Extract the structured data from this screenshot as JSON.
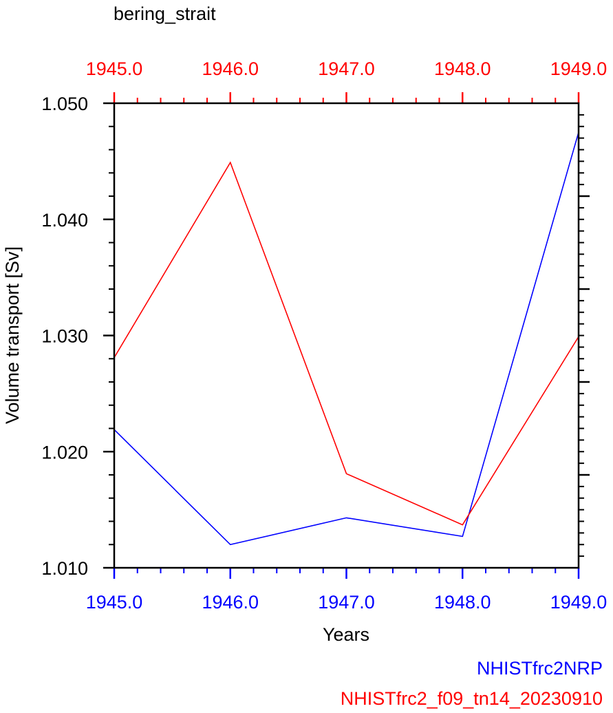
{
  "chart_data": {
    "type": "line",
    "title": "bering_strait",
    "xlabel": "Years",
    "ylabel": "Volume transport [Sv]",
    "x": [
      1945.0,
      1946.0,
      1947.0,
      1948.0,
      1949.0
    ],
    "xlim": [
      1945.0,
      1949.0
    ],
    "ylim": [
      1.01,
      1.05
    ],
    "x_tick_labels": [
      "1945.0",
      "1946.0",
      "1947.0",
      "1948.0",
      "1949.0"
    ],
    "y_tick_labels": [
      "1.010",
      "1.020",
      "1.030",
      "1.040",
      "1.050"
    ],
    "grid": false,
    "legend_position": "bottom-right",
    "series": [
      {
        "name": "NHISTfrc2NRP",
        "color": "#0000ff",
        "values": [
          1.0219,
          1.012,
          1.0143,
          1.0127,
          1.0475
        ]
      },
      {
        "name": "NHISTfrc2_f09_tn14_20230910",
        "color": "#ff0000",
        "values": [
          1.0281,
          1.0449,
          1.0181,
          1.0137,
          1.0299
        ]
      }
    ]
  },
  "colors": {
    "bottom_axis": "#0000ff",
    "top_axis": "#ff0000",
    "frame": "#000000"
  }
}
